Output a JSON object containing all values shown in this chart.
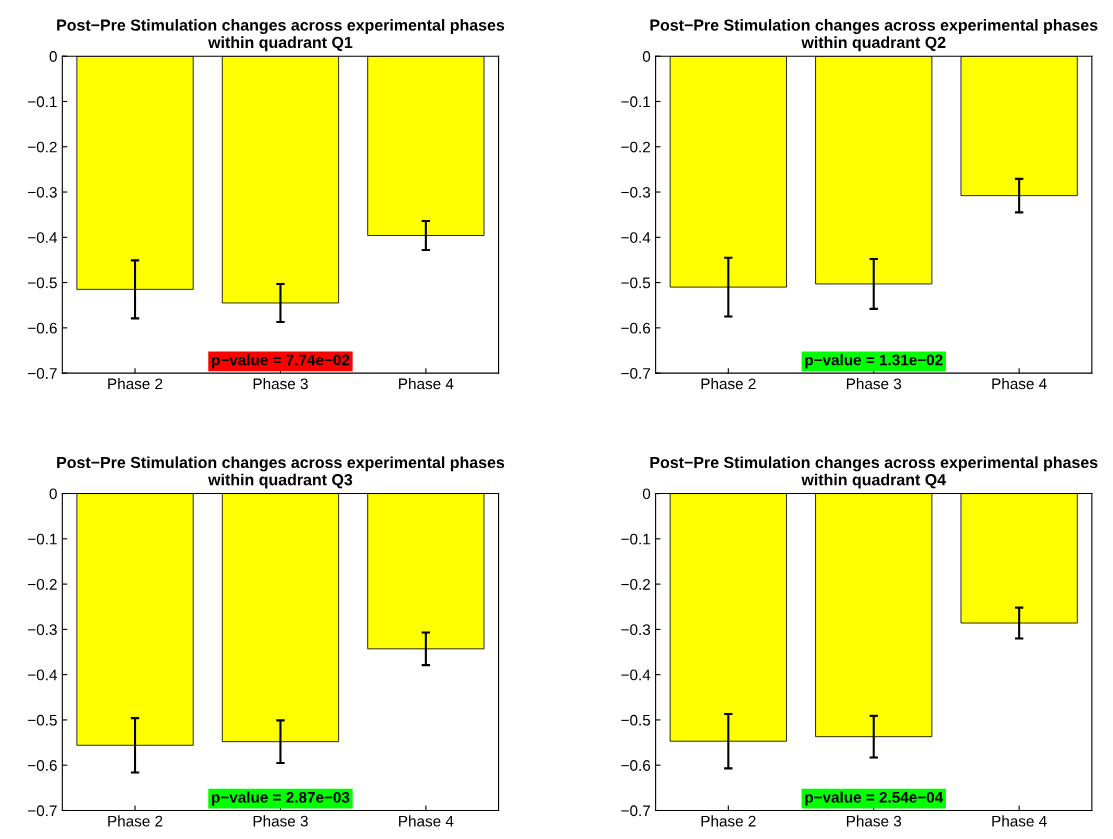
{
  "chart_data": [
    {
      "type": "bar",
      "title": "Post−Pre Stimulation changes across experimental phases\nwithin quadrant Q1",
      "categories": [
        "Phase 2",
        "Phase 3",
        "Phase 4"
      ],
      "values": [
        -0.515,
        -0.545,
        -0.396
      ],
      "errors": [
        0.064,
        0.042,
        0.032
      ],
      "color": "#ffff00",
      "ylim": [
        -0.7,
        0
      ],
      "yticks": [
        {
          "value": -0.7,
          "label": "−0.7"
        },
        {
          "value": -0.6,
          "label": "−0.6"
        },
        {
          "value": -0.5,
          "label": "−0.5"
        },
        {
          "value": -0.4,
          "label": "−0.4"
        },
        {
          "value": -0.3,
          "label": "−0.3"
        },
        {
          "value": -0.2,
          "label": "−0.2"
        },
        {
          "value": -0.1,
          "label": "−0.1"
        },
        0
      ],
      "annotations": [
        "p−value = 7.74e−02"
      ],
      "grid": false
    },
    {
      "type": "bar",
      "title": "Post−Pre Stimulation changes across experimental phases\nwithin quadrant Q2",
      "categories": [
        "Phase 2",
        "Phase 3",
        "Phase 4"
      ],
      "values": [
        -0.51,
        -0.503,
        -0.308
      ],
      "errors": [
        0.065,
        0.055,
        0.037
      ],
      "color": "#ffff00",
      "ylim": [
        -0.7,
        0
      ],
      "yticks": [
        {
          "value": -0.7,
          "label": "−0.7"
        },
        {
          "value": -0.6,
          "label": "−0.6"
        },
        {
          "value": -0.5,
          "label": "−0.5"
        },
        {
          "value": -0.4,
          "label": "−0.4"
        },
        {
          "value": -0.3,
          "label": "−0.3"
        },
        {
          "value": -0.2,
          "label": "−0.2"
        },
        {
          "value": -0.1,
          "label": "−0.1"
        },
        0
      ],
      "annotations": [
        "p−value = 1.31e−02"
      ],
      "grid": false
    },
    {
      "type": "bar",
      "title": "Post−Pre Stimulation changes across experimental phases\nwithin quadrant Q3",
      "categories": [
        "Phase 2",
        "Phase 3",
        "Phase 4"
      ],
      "values": [
        -0.556,
        -0.548,
        -0.343
      ],
      "errors": [
        0.06,
        0.047,
        0.036
      ],
      "color": "#ffff00",
      "ylim": [
        -0.7,
        0
      ],
      "yticks": [
        {
          "value": -0.7,
          "label": "−0.7"
        },
        {
          "value": -0.6,
          "label": "−0.6"
        },
        {
          "value": -0.5,
          "label": "−0.5"
        },
        {
          "value": -0.4,
          "label": "−0.4"
        },
        {
          "value": -0.3,
          "label": "−0.3"
        },
        {
          "value": -0.2,
          "label": "−0.2"
        },
        {
          "value": -0.1,
          "label": "−0.1"
        },
        0
      ],
      "annotations": [
        "p−value = 2.87e−03"
      ],
      "grid": false
    },
    {
      "type": "bar",
      "title": "Post−Pre Stimulation changes across experimental phases\nwithin quadrant Q4",
      "categories": [
        "Phase 2",
        "Phase 3",
        "Phase 4"
      ],
      "values": [
        -0.547,
        -0.537,
        -0.286
      ],
      "errors": [
        0.06,
        0.046,
        0.034
      ],
      "color": "#ffff00",
      "ylim": [
        -0.7,
        0
      ],
      "yticks": [
        {
          "value": -0.7,
          "label": "−0.7"
        },
        {
          "value": -0.6,
          "label": "−0.6"
        },
        {
          "value": -0.5,
          "label": "−0.5"
        },
        {
          "value": -0.4,
          "label": "−0.4"
        },
        {
          "value": -0.3,
          "label": "−0.3"
        },
        {
          "value": -0.2,
          "label": "−0.2"
        },
        {
          "value": -0.1,
          "label": "−0.1"
        },
        0
      ],
      "annotations": [
        "p−value = 2.54e−04"
      ],
      "grid": false
    }
  ]
}
